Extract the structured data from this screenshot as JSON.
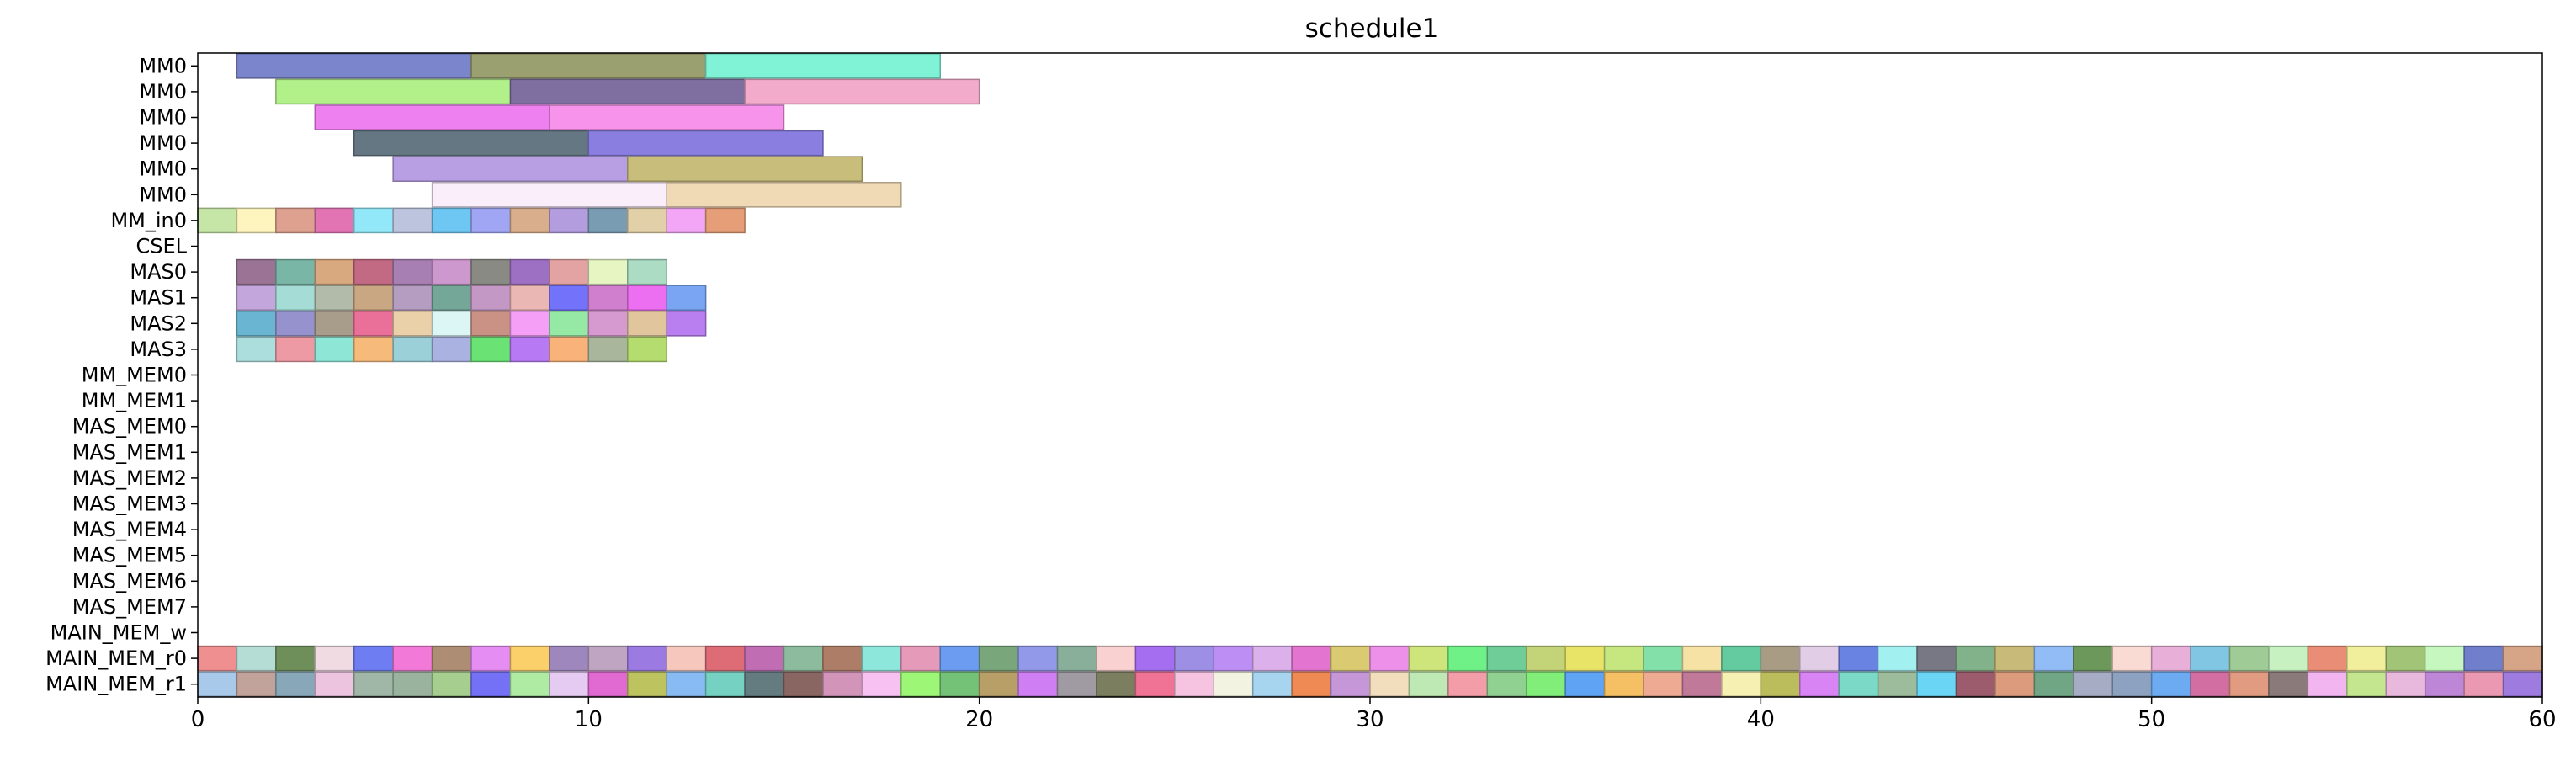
{
  "chart_data": {
    "type": "gantt",
    "title": "schedule1",
    "xlabel": "",
    "ylabel": "",
    "xlim": [
      0,
      60
    ],
    "x_ticks": [
      0,
      10,
      20,
      30,
      40,
      50,
      60
    ],
    "grid": false,
    "rows": [
      "MM0",
      "MM0",
      "MM0",
      "MM0",
      "MM0",
      "MM0",
      "MM_in0",
      "CSEL",
      "MAS0",
      "MAS1",
      "MAS2",
      "MAS3",
      "MM_MEM0",
      "MM_MEM1",
      "MAS_MEM0",
      "MAS_MEM1",
      "MAS_MEM2",
      "MAS_MEM3",
      "MAS_MEM4",
      "MAS_MEM5",
      "MAS_MEM6",
      "MAS_MEM7",
      "MAIN_MEM_w",
      "MAIN_MEM_r0",
      "MAIN_MEM_r1"
    ],
    "segments": [
      {
        "row": 0,
        "start": 1,
        "end": 7,
        "color": "#7b85cc"
      },
      {
        "row": 0,
        "start": 7,
        "end": 13,
        "color": "#9aa06f"
      },
      {
        "row": 0,
        "start": 13,
        "end": 19,
        "color": "#80f3d6"
      },
      {
        "row": 1,
        "start": 2,
        "end": 8,
        "color": "#b2f08a"
      },
      {
        "row": 1,
        "start": 8,
        "end": 14,
        "color": "#7e6fa0"
      },
      {
        "row": 1,
        "start": 14,
        "end": 20,
        "color": "#f2abca"
      },
      {
        "row": 2,
        "start": 3,
        "end": 9,
        "color": "#ef80f0"
      },
      {
        "row": 2,
        "start": 9,
        "end": 15,
        "color": "#f793eb"
      },
      {
        "row": 3,
        "start": 4,
        "end": 10,
        "color": "#667784"
      },
      {
        "row": 3,
        "start": 10,
        "end": 16,
        "color": "#8a7fe0"
      },
      {
        "row": 4,
        "start": 5,
        "end": 11,
        "color": "#b89ee3"
      },
      {
        "row": 4,
        "start": 11,
        "end": 17,
        "color": "#c8bd7a"
      },
      {
        "row": 5,
        "start": 6,
        "end": 12,
        "color": "#fbeefb"
      },
      {
        "row": 5,
        "start": 12,
        "end": 18,
        "color": "#f0dab6"
      },
      {
        "row": 6,
        "start": 0,
        "end": 1,
        "color": "#c6e6a8"
      },
      {
        "row": 6,
        "start": 1,
        "end": 2,
        "color": "#fdf5bd"
      },
      {
        "row": 6,
        "start": 2,
        "end": 3,
        "color": "#dea08f"
      },
      {
        "row": 6,
        "start": 3,
        "end": 4,
        "color": "#e274b4"
      },
      {
        "row": 6,
        "start": 4,
        "end": 5,
        "color": "#92e8f8"
      },
      {
        "row": 6,
        "start": 5,
        "end": 6,
        "color": "#bcc4de"
      },
      {
        "row": 6,
        "start": 6,
        "end": 7,
        "color": "#6ec6f2"
      },
      {
        "row": 6,
        "start": 7,
        "end": 8,
        "color": "#a0a6f4"
      },
      {
        "row": 6,
        "start": 8,
        "end": 9,
        "color": "#d8ae8c"
      },
      {
        "row": 6,
        "start": 9,
        "end": 10,
        "color": "#b39ddf"
      },
      {
        "row": 6,
        "start": 10,
        "end": 11,
        "color": "#7a9cb2"
      },
      {
        "row": 6,
        "start": 11,
        "end": 12,
        "color": "#e2d1a8"
      },
      {
        "row": 6,
        "start": 12,
        "end": 13,
        "color": "#f2a6f5"
      },
      {
        "row": 6,
        "start": 13,
        "end": 14,
        "color": "#e59e78"
      },
      {
        "row": 8,
        "start": 1,
        "end": 2,
        "color": "#9b7495"
      },
      {
        "row": 8,
        "start": 2,
        "end": 3,
        "color": "#7ab6a6"
      },
      {
        "row": 8,
        "start": 3,
        "end": 4,
        "color": "#d8a87f"
      },
      {
        "row": 8,
        "start": 4,
        "end": 5,
        "color": "#c26a83"
      },
      {
        "row": 8,
        "start": 5,
        "end": 6,
        "color": "#a77fb2"
      },
      {
        "row": 8,
        "start": 6,
        "end": 7,
        "color": "#cd98cd"
      },
      {
        "row": 8,
        "start": 7,
        "end": 8,
        "color": "#8a8a84"
      },
      {
        "row": 8,
        "start": 8,
        "end": 9,
        "color": "#9e70c4"
      },
      {
        "row": 8,
        "start": 9,
        "end": 10,
        "color": "#e3a3a3"
      },
      {
        "row": 8,
        "start": 10,
        "end": 11,
        "color": "#e6f5c2"
      },
      {
        "row": 8,
        "start": 11,
        "end": 12,
        "color": "#acdcc4"
      },
      {
        "row": 9,
        "start": 1,
        "end": 2,
        "color": "#c2a6dc"
      },
      {
        "row": 9,
        "start": 2,
        "end": 3,
        "color": "#a5ddd6"
      },
      {
        "row": 9,
        "start": 3,
        "end": 4,
        "color": "#b2bba9"
      },
      {
        "row": 9,
        "start": 4,
        "end": 5,
        "color": "#c9a783"
      },
      {
        "row": 9,
        "start": 5,
        "end": 6,
        "color": "#b49dc0"
      },
      {
        "row": 9,
        "start": 6,
        "end": 7,
        "color": "#74a797"
      },
      {
        "row": 9,
        "start": 7,
        "end": 8,
        "color": "#c498c5"
      },
      {
        "row": 9,
        "start": 8,
        "end": 9,
        "color": "#ebb7b5"
      },
      {
        "row": 9,
        "start": 9,
        "end": 10,
        "color": "#7272fa"
      },
      {
        "row": 9,
        "start": 10,
        "end": 11,
        "color": "#d07fce"
      },
      {
        "row": 9,
        "start": 11,
        "end": 12,
        "color": "#ed6ff1"
      },
      {
        "row": 9,
        "start": 12,
        "end": 13,
        "color": "#79a5f3"
      },
      {
        "row": 10,
        "start": 1,
        "end": 2,
        "color": "#6ab6d2"
      },
      {
        "row": 10,
        "start": 2,
        "end": 3,
        "color": "#9592ce"
      },
      {
        "row": 10,
        "start": 3,
        "end": 4,
        "color": "#a89c8a"
      },
      {
        "row": 10,
        "start": 4,
        "end": 5,
        "color": "#ea6f99"
      },
      {
        "row": 10,
        "start": 5,
        "end": 6,
        "color": "#ebd1aa"
      },
      {
        "row": 10,
        "start": 6,
        "end": 7,
        "color": "#dcf6f6"
      },
      {
        "row": 10,
        "start": 7,
        "end": 8,
        "color": "#c99284"
      },
      {
        "row": 10,
        "start": 8,
        "end": 9,
        "color": "#f5a0f6"
      },
      {
        "row": 10,
        "start": 9,
        "end": 10,
        "color": "#96e9a5"
      },
      {
        "row": 10,
        "start": 10,
        "end": 11,
        "color": "#d79ad0"
      },
      {
        "row": 10,
        "start": 11,
        "end": 12,
        "color": "#e0c59d"
      },
      {
        "row": 10,
        "start": 12,
        "end": 13,
        "color": "#b97ef0"
      },
      {
        "row": 11,
        "start": 1,
        "end": 2,
        "color": "#addede"
      },
      {
        "row": 11,
        "start": 2,
        "end": 3,
        "color": "#ed9aa4"
      },
      {
        "row": 11,
        "start": 3,
        "end": 4,
        "color": "#8ee6d6"
      },
      {
        "row": 11,
        "start": 4,
        "end": 5,
        "color": "#f6ba7b"
      },
      {
        "row": 11,
        "start": 5,
        "end": 6,
        "color": "#9cd0d8"
      },
      {
        "row": 11,
        "start": 6,
        "end": 7,
        "color": "#a9b2e0"
      },
      {
        "row": 11,
        "start": 7,
        "end": 8,
        "color": "#6ae274"
      },
      {
        "row": 11,
        "start": 8,
        "end": 9,
        "color": "#b87af4"
      },
      {
        "row": 11,
        "start": 9,
        "end": 10,
        "color": "#f8b27a"
      },
      {
        "row": 11,
        "start": 10,
        "end": 11,
        "color": "#a9b69c"
      },
      {
        "row": 11,
        "start": 11,
        "end": 12,
        "color": "#b4dc6e"
      }
    ],
    "dense_rows": [
      {
        "row": 23,
        "start": 0,
        "colors": [
          "#ef8f8f",
          "#b6dcd6",
          "#6f8f5a",
          "#efdbe1",
          "#6e7ef2",
          "#f279d8",
          "#ad8d74",
          "#e58df3",
          "#fbcf6a",
          "#9d87bc",
          "#bfa5c1",
          "#9b7ae2",
          "#f6c8bd",
          "#dd6c76",
          "#c06db3",
          "#8cbc9d",
          "#ad7d67",
          "#8de8db",
          "#e69aba",
          "#6b9cf2",
          "#79a67a",
          "#9299e9",
          "#89af9b",
          "#fad1d1",
          "#a56df0",
          "#9d8fe3",
          "#bd8ff5",
          "#dcb0eb",
          "#e374cf",
          "#dacb72",
          "#ec90ea",
          "#cde57a",
          "#6ff187",
          "#6fcd98",
          "#c3d478",
          "#e7e468",
          "#c6e77f",
          "#84e0a9",
          "#f5e2a4",
          "#64cba0",
          "#a89c84",
          "#e2cde6",
          "#6983e3",
          "#a3f0f1",
          "#777884",
          "#82b289",
          "#c8bb79",
          "#91bcf5",
          "#6c985b",
          "#fadbd4",
          "#e8b0d9",
          "#81c7e4",
          "#9fcb96",
          "#c7f1c1",
          "#ea8d76",
          "#f1ee9c",
          "#a2c476",
          "#c5f7bf",
          "#6f7fcc",
          "#d6a487"
        ]
      },
      {
        "row": 24,
        "start": 0,
        "colors": [
          "#a9c9ea",
          "#c1a39c",
          "#88a8ba",
          "#ecc4e0",
          "#a0b7a7",
          "#9ab39f",
          "#a6cf8f",
          "#7571f7",
          "#b0eba4",
          "#e5cbf1",
          "#e06ad2",
          "#bdc35f",
          "#88bbf3",
          "#75d2c2",
          "#647c80",
          "#8a6663",
          "#d295b9",
          "#f7c1f1",
          "#9df676",
          "#74c277",
          "#b89f68",
          "#d07ef3",
          "#a09aa2",
          "#7c7e60",
          "#f07395",
          "#f6c3e1",
          "#f2f3e1",
          "#a7d5f0",
          "#f08a55",
          "#c597d8",
          "#f2ddbd",
          "#bfe9b4",
          "#f29da7",
          "#90d192",
          "#81ee7a",
          "#5ea3f4",
          "#f5c064",
          "#eeaa92",
          "#c07999",
          "#f7f0b3",
          "#bbbc5b",
          "#d884f4",
          "#7ad9c7",
          "#9cbc9c",
          "#6ad5f5",
          "#9c5c6e",
          "#dc9b7c",
          "#71a685",
          "#a6acc3",
          "#8da1c0",
          "#6cabf1",
          "#d36ea2",
          "#e09b80",
          "#8a7a7a",
          "#f2b5f0",
          "#c4e68e",
          "#e9b8dd",
          "#bd86d6",
          "#eb99b2",
          "#9d7bdf"
        ]
      }
    ]
  }
}
